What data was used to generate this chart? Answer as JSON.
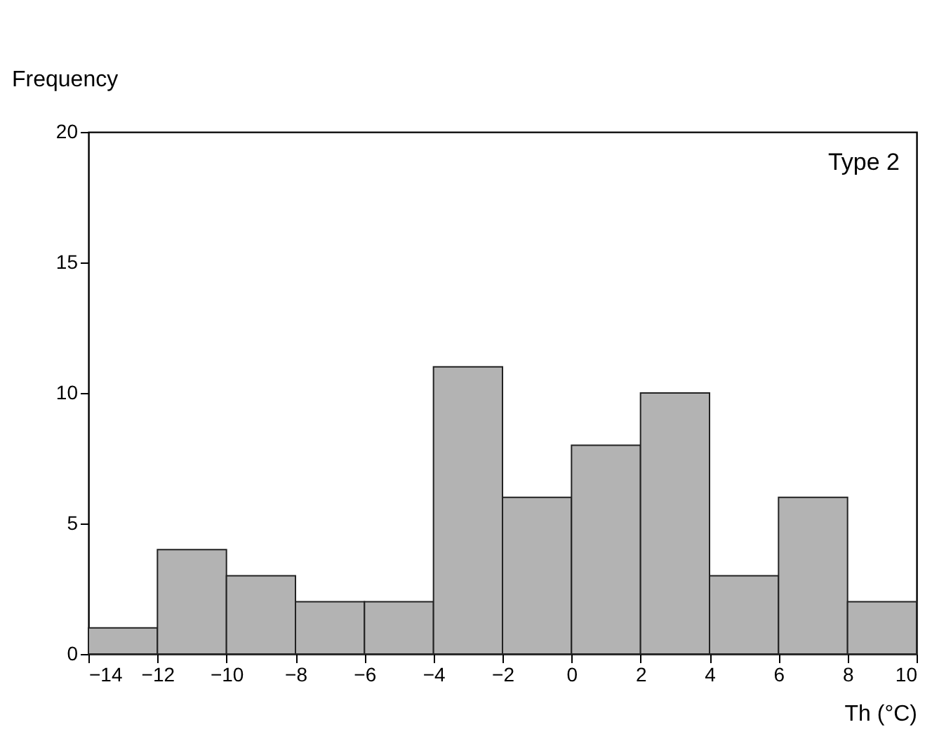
{
  "chart_data": {
    "type": "histogram",
    "bins": [
      -14,
      -12,
      -10,
      -8,
      -6,
      -4,
      -2,
      0,
      2,
      4,
      6,
      8,
      10
    ],
    "values": [
      1,
      4,
      3,
      2,
      2,
      11,
      6,
      8,
      10,
      3,
      6,
      2
    ],
    "color": "#b3b3b3",
    "xlabel": "Th (°C)",
    "ylabel": "Frequency",
    "annotations": [
      "Type 2"
    ],
    "xlim": [
      -14,
      10
    ],
    "xticks": [
      -14,
      -12,
      -10,
      -8,
      -6,
      -4,
      -2,
      0,
      2,
      4,
      6,
      8,
      10
    ],
    "ylim": [
      0,
      20
    ],
    "yticks": [
      0,
      5,
      10,
      15,
      20
    ],
    "grid": false
  }
}
